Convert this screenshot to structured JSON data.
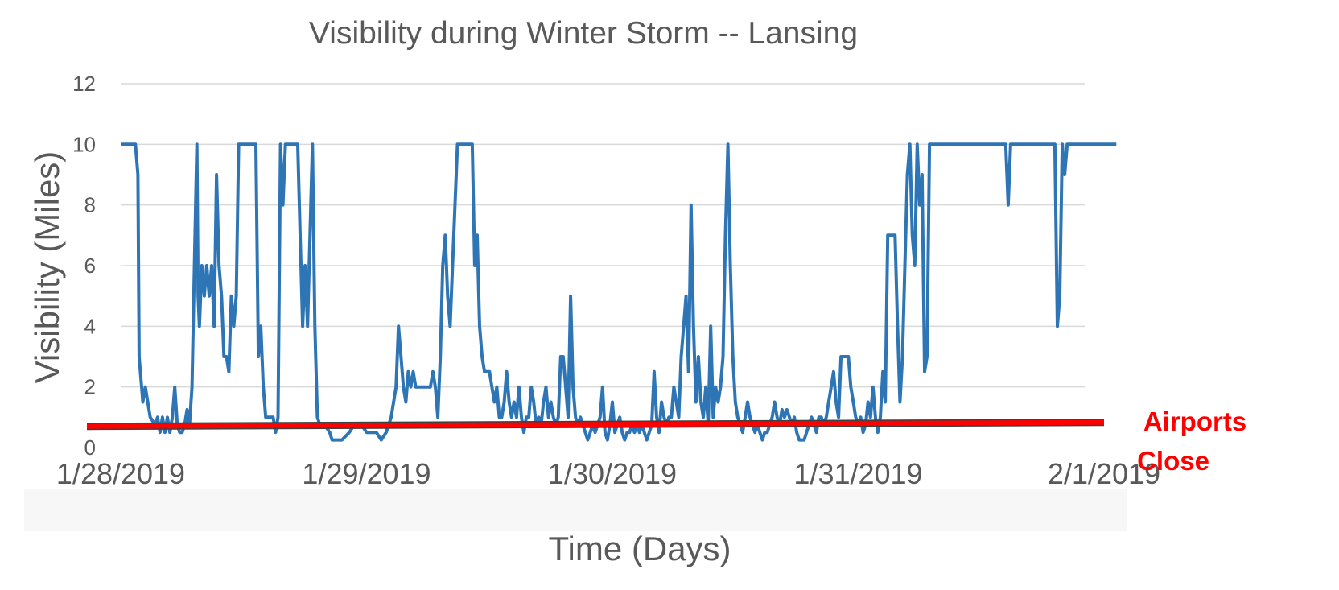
{
  "chart_data": {
    "type": "line",
    "title": "Visibility during Winter Storm -- Lansing",
    "xlabel": "Time (Days)",
    "ylabel": "Visibility (Miles)",
    "ylim": [
      0,
      12
    ],
    "y_ticks": [
      "0",
      "2",
      "4",
      "6",
      "8",
      "10",
      "12"
    ],
    "x_tick_labels": [
      "1/28/2019",
      "1/29/2019",
      "1/30/2019",
      "1/31/2019",
      "2/1/2019"
    ],
    "x_unit": "days since 1/28/2019 00:00",
    "xlim": [
      0,
      4
    ],
    "grid": "horizontal",
    "series_color": "#2E75B6",
    "threshold": {
      "label_line1": "Airports",
      "label_line2": "Close",
      "value": 0.75,
      "color": "#FF0000"
    },
    "series": [
      {
        "values": [
          [
            0.0,
            10
          ],
          [
            0.06,
            10
          ],
          [
            0.07,
            9
          ],
          [
            0.075,
            3
          ],
          [
            0.08,
            2.5
          ],
          [
            0.085,
            2
          ],
          [
            0.09,
            1.5
          ],
          [
            0.1,
            2
          ],
          [
            0.11,
            1.5
          ],
          [
            0.12,
            1
          ],
          [
            0.14,
            0.75
          ],
          [
            0.15,
            1
          ],
          [
            0.16,
            0.5
          ],
          [
            0.17,
            1
          ],
          [
            0.18,
            0.5
          ],
          [
            0.19,
            1
          ],
          [
            0.2,
            0.5
          ],
          [
            0.21,
            1
          ],
          [
            0.22,
            2
          ],
          [
            0.23,
            0.75
          ],
          [
            0.24,
            0.5
          ],
          [
            0.25,
            0.5
          ],
          [
            0.26,
            0.75
          ],
          [
            0.27,
            1.25
          ],
          [
            0.28,
            0.75
          ],
          [
            0.29,
            2
          ],
          [
            0.3,
            6
          ],
          [
            0.31,
            10
          ],
          [
            0.315,
            5
          ],
          [
            0.32,
            4
          ],
          [
            0.33,
            6
          ],
          [
            0.34,
            5
          ],
          [
            0.35,
            6
          ],
          [
            0.36,
            5
          ],
          [
            0.37,
            6
          ],
          [
            0.38,
            4
          ],
          [
            0.39,
            9
          ],
          [
            0.4,
            6
          ],
          [
            0.41,
            5
          ],
          [
            0.42,
            3
          ],
          [
            0.43,
            3
          ],
          [
            0.44,
            2.5
          ],
          [
            0.45,
            5
          ],
          [
            0.46,
            4
          ],
          [
            0.47,
            5
          ],
          [
            0.48,
            10
          ],
          [
            0.52,
            10
          ],
          [
            0.55,
            10
          ],
          [
            0.56,
            3
          ],
          [
            0.57,
            4
          ],
          [
            0.58,
            2
          ],
          [
            0.59,
            1
          ],
          [
            0.62,
            1
          ],
          [
            0.63,
            0.5
          ],
          [
            0.64,
            1
          ],
          [
            0.65,
            10
          ],
          [
            0.66,
            8
          ],
          [
            0.67,
            10
          ],
          [
            0.72,
            10
          ],
          [
            0.73,
            7
          ],
          [
            0.74,
            4
          ],
          [
            0.75,
            6
          ],
          [
            0.76,
            4
          ],
          [
            0.78,
            10
          ],
          [
            0.79,
            4
          ],
          [
            0.8,
            1
          ],
          [
            0.81,
            0.75
          ],
          [
            0.83,
            0.75
          ],
          [
            0.85,
            0.5
          ],
          [
            0.86,
            0.25
          ],
          [
            0.88,
            0.25
          ],
          [
            0.9,
            0.25
          ],
          [
            0.93,
            0.5
          ],
          [
            0.95,
            0.75
          ],
          [
            0.98,
            0.75
          ],
          [
            1.0,
            0.5
          ],
          [
            1.04,
            0.5
          ],
          [
            1.06,
            0.25
          ],
          [
            1.08,
            0.5
          ],
          [
            1.1,
            1
          ],
          [
            1.12,
            2
          ],
          [
            1.13,
            4
          ],
          [
            1.14,
            3
          ],
          [
            1.15,
            2
          ],
          [
            1.16,
            1.5
          ],
          [
            1.17,
            2.5
          ],
          [
            1.18,
            2
          ],
          [
            1.19,
            2.5
          ],
          [
            1.2,
            2
          ],
          [
            1.22,
            2
          ],
          [
            1.26,
            2
          ],
          [
            1.27,
            2.5
          ],
          [
            1.28,
            2
          ],
          [
            1.29,
            1
          ],
          [
            1.3,
            3
          ],
          [
            1.31,
            6
          ],
          [
            1.32,
            7
          ],
          [
            1.33,
            5
          ],
          [
            1.34,
            4
          ],
          [
            1.35,
            6
          ],
          [
            1.37,
            10
          ],
          [
            1.4,
            10
          ],
          [
            1.43,
            10
          ],
          [
            1.44,
            6
          ],
          [
            1.45,
            7
          ],
          [
            1.46,
            4
          ],
          [
            1.47,
            3
          ],
          [
            1.48,
            2.5
          ],
          [
            1.5,
            2.5
          ],
          [
            1.51,
            2
          ],
          [
            1.52,
            1.5
          ],
          [
            1.53,
            2
          ],
          [
            1.54,
            1
          ],
          [
            1.55,
            1
          ],
          [
            1.56,
            1.5
          ],
          [
            1.57,
            2.5
          ],
          [
            1.58,
            1.5
          ],
          [
            1.59,
            1
          ],
          [
            1.6,
            1.5
          ],
          [
            1.61,
            1
          ],
          [
            1.62,
            2
          ],
          [
            1.63,
            1
          ],
          [
            1.64,
            0.5
          ],
          [
            1.65,
            1
          ],
          [
            1.66,
            1
          ],
          [
            1.67,
            2
          ],
          [
            1.68,
            1.5
          ],
          [
            1.69,
            0.75
          ],
          [
            1.7,
            1
          ],
          [
            1.71,
            0.75
          ],
          [
            1.72,
            1.5
          ],
          [
            1.73,
            2
          ],
          [
            1.74,
            1
          ],
          [
            1.75,
            1.5
          ],
          [
            1.76,
            1
          ],
          [
            1.77,
            0.75
          ],
          [
            1.78,
            1
          ],
          [
            1.79,
            3
          ],
          [
            1.8,
            3
          ],
          [
            1.81,
            2
          ],
          [
            1.82,
            1
          ],
          [
            1.83,
            5
          ],
          [
            1.84,
            2
          ],
          [
            1.85,
            1
          ],
          [
            1.86,
            0.75
          ],
          [
            1.87,
            1
          ],
          [
            1.88,
            0.75
          ],
          [
            1.89,
            0.5
          ],
          [
            1.9,
            0.25
          ],
          [
            1.91,
            0.5
          ],
          [
            1.92,
            0.75
          ],
          [
            1.93,
            0.5
          ],
          [
            1.94,
            0.75
          ],
          [
            1.95,
            1
          ],
          [
            1.96,
            2
          ],
          [
            1.97,
            0.5
          ],
          [
            1.98,
            0.25
          ],
          [
            1.99,
            0.75
          ],
          [
            2.0,
            1.5
          ],
          [
            2.01,
            0.5
          ],
          [
            2.02,
            0.75
          ],
          [
            2.03,
            1
          ],
          [
            2.04,
            0.5
          ],
          [
            2.05,
            0.25
          ],
          [
            2.06,
            0.5
          ],
          [
            2.07,
            0.5
          ],
          [
            2.08,
            0.75
          ],
          [
            2.09,
            0.5
          ],
          [
            2.1,
            0.75
          ],
          [
            2.11,
            0.5
          ],
          [
            2.12,
            0.75
          ],
          [
            2.13,
            0.5
          ],
          [
            2.14,
            0.25
          ],
          [
            2.15,
            0.5
          ],
          [
            2.16,
            0.75
          ],
          [
            2.17,
            2.5
          ],
          [
            2.18,
            1
          ],
          [
            2.19,
            0.5
          ],
          [
            2.2,
            1.5
          ],
          [
            2.21,
            1
          ],
          [
            2.22,
            0.75
          ],
          [
            2.23,
            1
          ],
          [
            2.24,
            1
          ],
          [
            2.25,
            2
          ],
          [
            2.26,
            1.5
          ],
          [
            2.27,
            1
          ],
          [
            2.28,
            3
          ],
          [
            2.29,
            4
          ],
          [
            2.3,
            5
          ],
          [
            2.31,
            2.5
          ],
          [
            2.32,
            8
          ],
          [
            2.33,
            4
          ],
          [
            2.34,
            1.5
          ],
          [
            2.35,
            3
          ],
          [
            2.36,
            1.5
          ],
          [
            2.37,
            1
          ],
          [
            2.38,
            2
          ],
          [
            2.39,
            0.75
          ],
          [
            2.4,
            4
          ],
          [
            2.41,
            1
          ],
          [
            2.42,
            2
          ],
          [
            2.43,
            1.5
          ],
          [
            2.44,
            2
          ],
          [
            2.45,
            3
          ],
          [
            2.46,
            7
          ],
          [
            2.47,
            10
          ],
          [
            2.48,
            6
          ],
          [
            2.49,
            3
          ],
          [
            2.5,
            1.5
          ],
          [
            2.51,
            1
          ],
          [
            2.52,
            0.75
          ],
          [
            2.53,
            0.5
          ],
          [
            2.54,
            1
          ],
          [
            2.55,
            1.5
          ],
          [
            2.56,
            1
          ],
          [
            2.57,
            0.75
          ],
          [
            2.58,
            0.5
          ],
          [
            2.59,
            0.75
          ],
          [
            2.6,
            0.5
          ],
          [
            2.61,
            0.25
          ],
          [
            2.62,
            0.5
          ],
          [
            2.63,
            0.5
          ],
          [
            2.64,
            0.75
          ],
          [
            2.65,
            1
          ],
          [
            2.66,
            1.5
          ],
          [
            2.67,
            1
          ],
          [
            2.68,
            0.75
          ],
          [
            2.69,
            1.25
          ],
          [
            2.7,
            1
          ],
          [
            2.71,
            1.25
          ],
          [
            2.72,
            1
          ],
          [
            2.73,
            0.75
          ],
          [
            2.74,
            1
          ],
          [
            2.75,
            0.5
          ],
          [
            2.76,
            0.25
          ],
          [
            2.78,
            0.25
          ],
          [
            2.79,
            0.5
          ],
          [
            2.8,
            0.75
          ],
          [
            2.81,
            1
          ],
          [
            2.82,
            0.75
          ],
          [
            2.83,
            0.5
          ],
          [
            2.84,
            1
          ],
          [
            2.85,
            1
          ],
          [
            2.86,
            0.75
          ],
          [
            2.87,
            1
          ],
          [
            2.88,
            1.5
          ],
          [
            2.89,
            2
          ],
          [
            2.9,
            2.5
          ],
          [
            2.91,
            1.5
          ],
          [
            2.92,
            1
          ],
          [
            2.93,
            3
          ],
          [
            2.96,
            3
          ],
          [
            2.97,
            2
          ],
          [
            2.98,
            1.5
          ],
          [
            2.99,
            1
          ],
          [
            3.0,
            0.75
          ],
          [
            3.01,
            1
          ],
          [
            3.02,
            0.5
          ],
          [
            3.03,
            0.75
          ],
          [
            3.04,
            1.5
          ],
          [
            3.05,
            1
          ],
          [
            3.06,
            2
          ],
          [
            3.07,
            1
          ],
          [
            3.08,
            0.5
          ],
          [
            3.09,
            1
          ],
          [
            3.1,
            2.5
          ],
          [
            3.11,
            1.5
          ],
          [
            3.12,
            7
          ],
          [
            3.15,
            7
          ],
          [
            3.16,
            4
          ],
          [
            3.17,
            1.5
          ],
          [
            3.18,
            3
          ],
          [
            3.19,
            6
          ],
          [
            3.2,
            9
          ],
          [
            3.21,
            10
          ],
          [
            3.22,
            7
          ],
          [
            3.23,
            6
          ],
          [
            3.24,
            10
          ],
          [
            3.25,
            8
          ],
          [
            3.26,
            9
          ],
          [
            3.27,
            2.5
          ],
          [
            3.28,
            3
          ],
          [
            3.29,
            10
          ],
          [
            3.3,
            10
          ],
          [
            3.4,
            10
          ],
          [
            3.6,
            10
          ],
          [
            3.61,
            8
          ],
          [
            3.62,
            10
          ],
          [
            3.8,
            10
          ],
          [
            3.81,
            4
          ],
          [
            3.82,
            5
          ],
          [
            3.83,
            10
          ],
          [
            3.84,
            9
          ],
          [
            3.85,
            10
          ],
          [
            4.0,
            10
          ],
          [
            4.05,
            10
          ]
        ]
      }
    ]
  }
}
